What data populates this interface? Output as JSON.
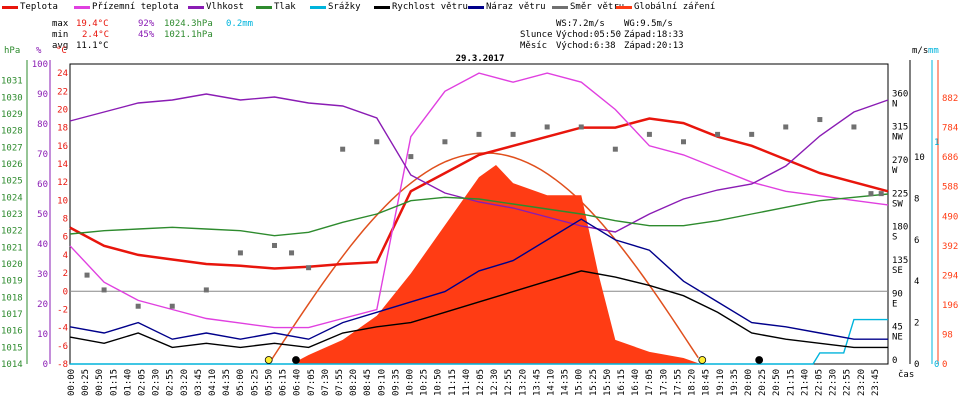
{
  "legend": [
    {
      "label": "Teplota",
      "color": "#e8150c"
    },
    {
      "label": "Přízemní teplota",
      "color": "#e040e0"
    },
    {
      "label": "Vlhkost",
      "color": "#8a1cb4"
    },
    {
      "label": "Tlak",
      "color": "#2e8b2e"
    },
    {
      "label": "Srážky",
      "color": "#00b4dc"
    },
    {
      "label": "Rychlost větru",
      "color": "#000000"
    },
    {
      "label": "Náraz větru",
      "color": "#00008b"
    },
    {
      "label": "Směr větru",
      "color": "#707070"
    },
    {
      "label": "Globální záření",
      "color": "#ff3c14"
    }
  ],
  "stats": {
    "max": {
      "label": "max",
      "temp": "19.4°C",
      "hum": "92%",
      "press": "1024.3hPa",
      "rain": "0.2mm"
    },
    "min": {
      "label": "min",
      "temp": "2.4°C",
      "hum": "45%",
      "press": "1021.1hPa"
    },
    "avg": {
      "label": "avg",
      "temp": "11.1°C"
    }
  },
  "wind": {
    "ws": "WS:7.2m/s",
    "wg": "WG:9.5m/s"
  },
  "sun": {
    "label": "Slunce",
    "rise": "Východ:05:50",
    "set": "Západ:18:33"
  },
  "moon": {
    "label": "Měsíc",
    "rise": "Východ:6:38",
    "set": "Západ:20:13"
  },
  "axis_units": {
    "hpa": "hPa",
    "pct": "%",
    "degc": "°C",
    "ms": "m/s",
    "mm": "mm"
  },
  "xaxis_label": "čas",
  "chart_data": {
    "type": "line",
    "title": "29.3.2017",
    "x_ticks": [
      "00:00",
      "00:25",
      "00:50",
      "01:15",
      "01:40",
      "02:05",
      "02:30",
      "02:55",
      "03:20",
      "03:45",
      "04:10",
      "04:35",
      "05:00",
      "05:25",
      "05:50",
      "06:15",
      "06:40",
      "07:05",
      "07:30",
      "07:55",
      "08:20",
      "08:45",
      "09:10",
      "09:35",
      "10:00",
      "10:25",
      "10:50",
      "11:15",
      "11:40",
      "12:05",
      "12:30",
      "12:55",
      "13:20",
      "13:45",
      "14:10",
      "14:35",
      "15:00",
      "15:25",
      "15:50",
      "16:15",
      "16:40",
      "17:05",
      "17:30",
      "17:55",
      "18:20",
      "18:45",
      "19:10",
      "19:35",
      "20:00",
      "20:25",
      "20:50",
      "21:15",
      "21:40",
      "22:05",
      "22:30",
      "22:55",
      "23:20",
      "23:45"
    ],
    "axes": {
      "hpa": {
        "ticks": [
          1031,
          1030,
          1029,
          1028,
          1027,
          1026,
          1025,
          1024,
          1023,
          1022,
          1021,
          1020,
          1019,
          1018,
          1017,
          1016,
          1015,
          1014
        ]
      },
      "pct": {
        "ticks": [
          100,
          90,
          80,
          70,
          60,
          50,
          40,
          30,
          20,
          10,
          0
        ]
      },
      "degc": {
        "ticks": [
          24,
          22,
          20,
          18,
          16,
          14,
          12,
          10,
          8,
          6,
          4,
          2,
          0,
          -2,
          -4,
          -6,
          -8
        ],
        "ylim": [
          -8,
          25
        ]
      },
      "dir": {
        "ticks": [
          {
            "v": 360,
            "l": "N"
          },
          {
            "v": 315,
            "l": "NW"
          },
          {
            "v": 270,
            "l": "W"
          },
          {
            "v": 225,
            "l": "SW"
          },
          {
            "v": 180,
            "l": "S"
          },
          {
            "v": 135,
            "l": "SE"
          },
          {
            "v": 90,
            "l": "E"
          },
          {
            "v": 45,
            "l": "NE"
          },
          {
            "v": 0,
            "l": ""
          }
        ]
      },
      "ms": {
        "ticks": [
          10,
          8,
          6,
          4,
          2,
          0
        ]
      },
      "mm": {
        "ticks": [
          1,
          0
        ]
      },
      "rad": {
        "ticks": [
          882,
          784,
          686,
          588,
          490,
          392,
          294,
          196,
          98,
          0
        ]
      }
    },
    "series": [
      {
        "name": "Teplota",
        "color": "#e8150c",
        "x": [
          0,
          1,
          2,
          3,
          4,
          5,
          6,
          7,
          8,
          9,
          10,
          11,
          12,
          13,
          14,
          15,
          16,
          17,
          18,
          19,
          20,
          21,
          22,
          23,
          24
        ],
        "y": [
          7,
          5,
          4,
          3.5,
          3,
          2.8,
          2.5,
          2.7,
          3,
          3.2,
          11,
          13,
          15,
          16,
          17,
          18,
          18,
          19,
          18.5,
          17,
          16,
          14.5,
          13,
          12,
          11
        ]
      },
      {
        "name": "Přízemní teplota",
        "color": "#e040e0",
        "x": [
          0,
          1,
          2,
          3,
          4,
          5,
          6,
          7,
          8,
          9,
          10,
          11,
          12,
          13,
          14,
          15,
          16,
          17,
          18,
          19,
          20,
          21,
          22,
          23,
          24
        ],
        "y": [
          5,
          1,
          -1,
          -2,
          -3,
          -3.5,
          -4,
          -4,
          -3,
          -2,
          17,
          22,
          24,
          23,
          24,
          23,
          20,
          16,
          15,
          13.5,
          12,
          11,
          10.5,
          10,
          9.5
        ]
      },
      {
        "name": "Vlhkost",
        "color": "#8a1cb4",
        "x": [
          0,
          1,
          2,
          3,
          4,
          5,
          6,
          7,
          8,
          9,
          10,
          11,
          12,
          13,
          14,
          15,
          16,
          17,
          18,
          19,
          20,
          21,
          22,
          23,
          24
        ],
        "y": [
          81,
          84,
          87,
          88,
          90,
          88,
          89,
          87,
          86,
          82,
          63,
          57,
          54,
          52,
          49,
          46,
          44,
          50,
          55,
          58,
          60,
          66,
          76,
          84,
          88
        ]
      },
      {
        "name": "Tlak",
        "color": "#2e8b2e",
        "x": [
          0,
          1,
          2,
          3,
          4,
          5,
          6,
          7,
          8,
          9,
          10,
          11,
          12,
          13,
          14,
          15,
          16,
          17,
          18,
          19,
          20,
          21,
          22,
          23,
          24
        ],
        "y": [
          1021.8,
          1022,
          1022.1,
          1022.2,
          1022.1,
          1022,
          1021.7,
          1021.9,
          1022.5,
          1023,
          1023.8,
          1024,
          1023.9,
          1023.6,
          1023.3,
          1023,
          1022.6,
          1022.3,
          1022.3,
          1022.6,
          1023,
          1023.4,
          1023.8,
          1024,
          1024.2
        ]
      },
      {
        "name": "Srážky",
        "color": "#00b4dc",
        "x": [
          0,
          21.8,
          22,
          22.7,
          23,
          24
        ],
        "y": [
          0,
          0,
          0.05,
          0.05,
          0.2,
          0.2
        ]
      },
      {
        "name": "Rychlost větru",
        "color": "#000000",
        "x": [
          0,
          1,
          2,
          3,
          4,
          5,
          6,
          7,
          8,
          9,
          10,
          11,
          12,
          13,
          14,
          15,
          16,
          17,
          18,
          19,
          20,
          21,
          22,
          23,
          24
        ],
        "y": [
          1.3,
          1,
          1.5,
          0.8,
          1,
          0.8,
          1,
          0.8,
          1.5,
          1.8,
          2,
          2.5,
          3,
          3.5,
          4,
          4.5,
          4.2,
          3.8,
          3.3,
          2.5,
          1.5,
          1.2,
          1,
          0.8,
          0.8
        ]
      },
      {
        "name": "Náraz větru",
        "color": "#00008b",
        "x": [
          0,
          1,
          2,
          3,
          4,
          5,
          6,
          7,
          8,
          9,
          10,
          11,
          12,
          13,
          14,
          15,
          16,
          17,
          18,
          19,
          20,
          21,
          22,
          23,
          24
        ],
        "y": [
          1.8,
          1.5,
          2,
          1.2,
          1.5,
          1.2,
          1.5,
          1.2,
          2,
          2.5,
          3,
          3.5,
          4.5,
          5,
          6,
          7,
          6,
          5.5,
          4,
          3,
          2,
          1.8,
          1.5,
          1.2,
          1.2
        ]
      },
      {
        "name": "Směr větru",
        "color": "#707070",
        "type": "scatter",
        "x": [
          0.5,
          1,
          2,
          3,
          4,
          5,
          6,
          6.5,
          7,
          8,
          9,
          10,
          11,
          12,
          13,
          14,
          15,
          16,
          17,
          18,
          19,
          20,
          21,
          22,
          23,
          23.5,
          23.8
        ],
        "y": [
          120,
          100,
          78,
          78,
          100,
          150,
          160,
          150,
          130,
          290,
          300,
          280,
          300,
          310,
          310,
          320,
          320,
          290,
          310,
          300,
          310,
          310,
          320,
          330,
          320,
          230,
          230
        ]
      },
      {
        "name": "Globální záření",
        "color": "#ff3c14",
        "type": "area",
        "x": [
          6.5,
          7,
          8,
          9,
          10,
          11,
          12,
          12.5,
          13,
          14,
          15,
          15.5,
          16,
          17,
          18,
          18.5
        ],
        "y": [
          0,
          30,
          80,
          160,
          300,
          460,
          620,
          660,
          600,
          560,
          560,
          300,
          80,
          40,
          20,
          0
        ]
      }
    ]
  }
}
